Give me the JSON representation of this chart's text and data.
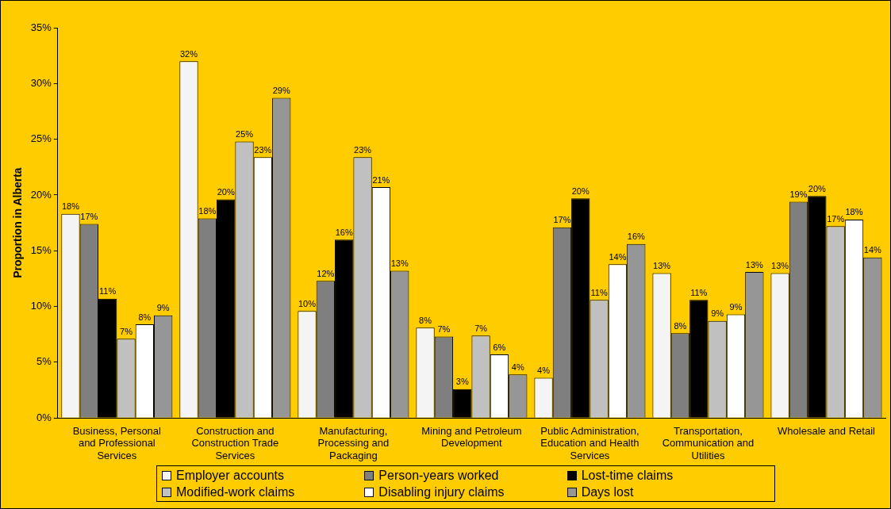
{
  "chart_data": {
    "type": "bar",
    "ylabel": "Proportion in Alberta",
    "categories": [
      "Business, Personal and Professional Services",
      "Construction and Construction Trade Services",
      "Manufacturing, Processing and Packaging",
      "Mining and Petroleum Development",
      "Public Administration, Education and Health Services",
      "Transportation, Communication and Utilities",
      "Wholesale and Retail"
    ],
    "series": [
      {
        "name": "Employer accounts",
        "color": "#f4f4f4",
        "values": [
          18.3,
          32.0,
          9.6,
          8.1,
          3.6,
          13.0,
          13.0
        ],
        "value_labels": [
          "18%",
          "32%",
          "10%",
          "8%",
          "4%",
          "13%",
          "13%"
        ]
      },
      {
        "name": "Person-years worked",
        "color": "#7f7f7f",
        "values": [
          17.4,
          17.9,
          12.3,
          7.3,
          17.1,
          7.6,
          19.4
        ],
        "value_labels": [
          "17%",
          "18%",
          "12%",
          "7%",
          "17%",
          "8%",
          "19%"
        ]
      },
      {
        "name": "Lost-time claims",
        "color": "#000000",
        "values": [
          10.7,
          19.6,
          16.0,
          2.6,
          19.7,
          10.6,
          19.9
        ],
        "value_labels": [
          "11%",
          "20%",
          "16%",
          "3%",
          "20%",
          "11%",
          "20%"
        ]
      },
      {
        "name": "Modified-work claims",
        "color": "#c0c0c0",
        "values": [
          7.1,
          24.8,
          23.4,
          7.4,
          10.6,
          8.7,
          17.2
        ],
        "value_labels": [
          "7%",
          "25%",
          "23%",
          "7%",
          "11%",
          "9%",
          "17%"
        ]
      },
      {
        "name": "Disabling injury claims",
        "color": "#ffffff",
        "values": [
          8.4,
          23.4,
          20.7,
          5.7,
          13.8,
          9.3,
          17.8
        ],
        "value_labels": [
          "8%",
          "23%",
          "21%",
          "6%",
          "14%",
          "9%",
          "18%"
        ]
      },
      {
        "name": "Days lost",
        "color": "#969696",
        "values": [
          9.2,
          28.7,
          13.2,
          3.9,
          15.6,
          13.1,
          14.4
        ],
        "value_labels": [
          "9%",
          "29%",
          "13%",
          "4%",
          "16%",
          "13%",
          "14%"
        ]
      }
    ],
    "ylim": [
      0,
      35
    ],
    "yticks": [
      {
        "value": 0,
        "label": "0%"
      },
      {
        "value": 5,
        "label": "5%"
      },
      {
        "value": 10,
        "label": "10%"
      },
      {
        "value": 15,
        "label": "15%"
      },
      {
        "value": 20,
        "label": "20%"
      },
      {
        "value": 25,
        "label": "25%"
      },
      {
        "value": 30,
        "label": "30%"
      },
      {
        "value": 35,
        "label": "35%"
      }
    ],
    "grid": false,
    "legend": "bottom"
  }
}
